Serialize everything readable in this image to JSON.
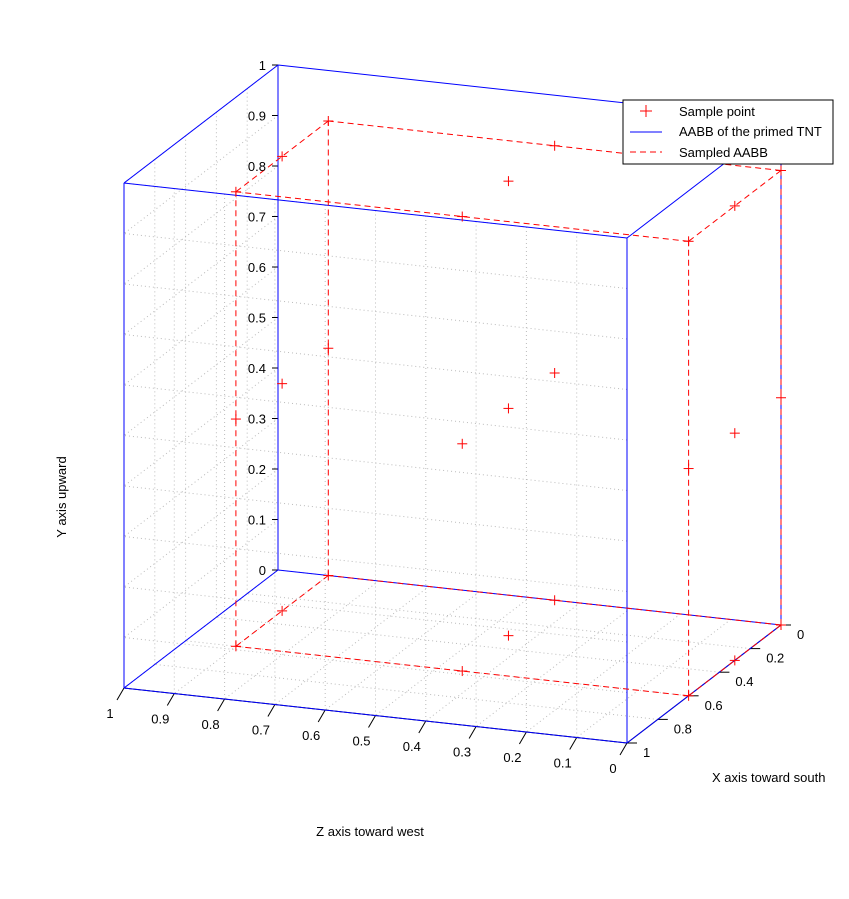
{
  "chart_data": {
    "type": "scatter",
    "xlabel": "X axis toward south",
    "ylabel": "Y axis upward",
    "zlabel": "Z axis toward west",
    "xlim": [
      0,
      1
    ],
    "ylim": [
      0,
      1
    ],
    "zlim": [
      0,
      1
    ],
    "x_ticks": [
      "0",
      "0.2",
      "0.4",
      "0.6",
      "0.8",
      "1"
    ],
    "y_ticks": [
      "0",
      "0.1",
      "0.2",
      "0.3",
      "0.4",
      "0.5",
      "0.6",
      "0.7",
      "0.8",
      "0.9",
      "1"
    ],
    "z_ticks": [
      "1",
      "0.9",
      "0.8",
      "0.7",
      "0.6",
      "0.5",
      "0.4",
      "0.3",
      "0.2",
      "0.1",
      "0"
    ],
    "grid": true,
    "legend_position": "top-right",
    "colors": {
      "tnt_box": "#0000ff",
      "sampled": "#ff0000",
      "axes": "#000000",
      "grid": "#bbbbbb"
    },
    "series": [
      {
        "name": "Sample point",
        "style": "marker-plus",
        "points": [
          {
            "x": 0.0,
            "y": 0.0,
            "z": 0.0
          },
          {
            "x": 0.0,
            "y": 0.45,
            "z": 0.0
          },
          {
            "x": 0.0,
            "y": 0.9,
            "z": 0.0
          },
          {
            "x": 0.0,
            "y": 0.0,
            "z": 0.45
          },
          {
            "x": 0.0,
            "y": 0.9,
            "z": 0.45
          },
          {
            "x": 0.0,
            "y": 0.0,
            "z": 0.9
          },
          {
            "x": 0.0,
            "y": 0.9,
            "z": 0.9
          },
          {
            "x": 0.0,
            "y": 0.45,
            "z": 0.9
          },
          {
            "x": 0.3,
            "y": 0.0,
            "z": 0.0
          },
          {
            "x": 0.3,
            "y": 0.9,
            "z": 0.0
          },
          {
            "x": 0.3,
            "y": 0.0,
            "z": 0.9
          },
          {
            "x": 0.3,
            "y": 0.9,
            "z": 0.9
          },
          {
            "x": 0.3,
            "y": 0.45,
            "z": 0.45
          },
          {
            "x": 0.3,
            "y": 0.45,
            "z": 0.0
          },
          {
            "x": 0.3,
            "y": 0.45,
            "z": 0.9
          },
          {
            "x": 0.6,
            "y": 0.0,
            "z": 0.0
          },
          {
            "x": 0.6,
            "y": 0.45,
            "z": 0.0
          },
          {
            "x": 0.6,
            "y": 0.9,
            "z": 0.0
          },
          {
            "x": 0.6,
            "y": 0.0,
            "z": 0.45
          },
          {
            "x": 0.6,
            "y": 0.9,
            "z": 0.45
          },
          {
            "x": 0.6,
            "y": 0.0,
            "z": 0.9
          },
          {
            "x": 0.6,
            "y": 0.9,
            "z": 0.9
          },
          {
            "x": 0.6,
            "y": 0.45,
            "z": 0.9
          },
          {
            "x": 0.3,
            "y": 0.0,
            "z": 0.45
          },
          {
            "x": 0.3,
            "y": 0.9,
            "z": 0.45
          },
          {
            "x": 0.6,
            "y": 0.45,
            "z": 0.45
          },
          {
            "x": 0.0,
            "y": 0.45,
            "z": 0.45
          }
        ]
      },
      {
        "name": "AABB of the primed TNT",
        "style": "solid-line",
        "box": {
          "x": [
            0,
            1
          ],
          "y": [
            0,
            1
          ],
          "z": [
            0,
            1
          ]
        }
      },
      {
        "name": "Sampled AABB",
        "style": "dashed-line",
        "box": {
          "x": [
            0,
            0.6
          ],
          "y": [
            0,
            0.9
          ],
          "z": [
            0,
            0.9
          ]
        }
      }
    ]
  }
}
